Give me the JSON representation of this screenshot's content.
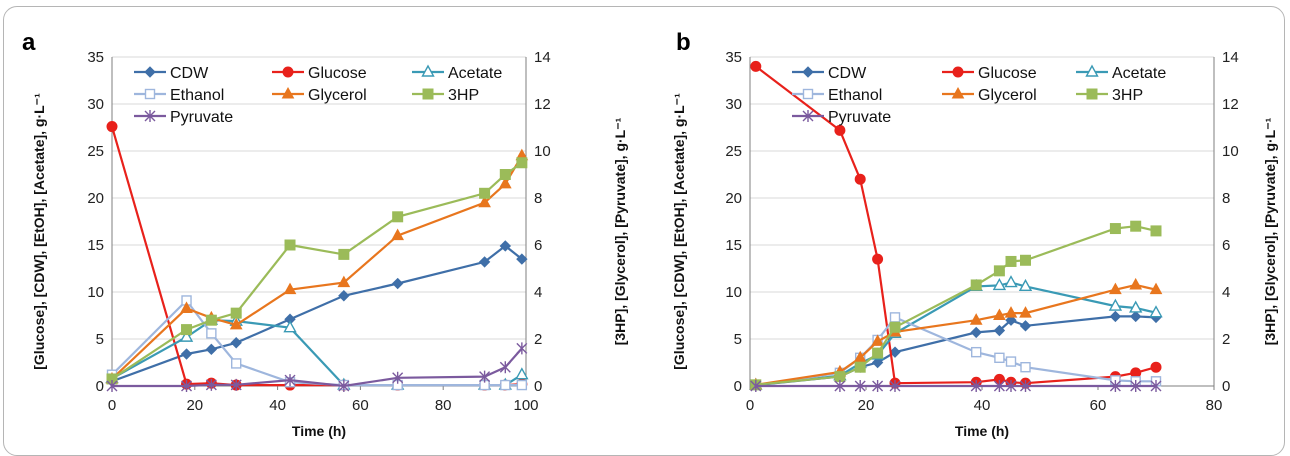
{
  "chart_data": [
    {
      "type": "line",
      "panel_label": "a",
      "xlabel": "Time (h)",
      "ylabel_left": "[Glucose], [CDW], [EtOH], [Acetate],  g·L⁻¹",
      "ylabel_right": "[3HP], [Glycerol], [Pyruvate], g·L⁻¹",
      "xlim": [
        0,
        100
      ],
      "xticks": [
        "0",
        "20",
        "40",
        "60",
        "80",
        "100"
      ],
      "ylim_left": [
        0,
        35
      ],
      "yticks_left": [
        "0",
        "5",
        "10",
        "15",
        "20",
        "25",
        "30",
        "35"
      ],
      "ylim_right": [
        0,
        14
      ],
      "yticks_right": [
        "0",
        "2",
        "4",
        "6",
        "8",
        "10",
        "12",
        "14"
      ],
      "grid": true,
      "legend_placement": "top-center",
      "series": [
        {
          "name": "CDW",
          "axis": "left",
          "color": "#3f6fa8",
          "marker": "diamond",
          "x": [
            0,
            18,
            24,
            30,
            43,
            56,
            69,
            90,
            95,
            99
          ],
          "y": [
            0.5,
            3.4,
            3.9,
            4.6,
            7.1,
            9.6,
            10.9,
            13.2,
            14.9,
            13.5
          ]
        },
        {
          "name": "Glucose",
          "axis": "left",
          "color": "#e8211b",
          "marker": "circle",
          "x": [
            0,
            18,
            24,
            30,
            43,
            56,
            69,
            90,
            95,
            99
          ],
          "y": [
            27.6,
            0.2,
            0.3,
            0.1,
            0.1,
            0.1,
            0.1,
            0.1,
            0.1,
            0.2
          ]
        },
        {
          "name": "Acetate",
          "axis": "left",
          "color": "#3a9ab5",
          "marker": "triangle-open",
          "x": [
            0,
            18,
            24,
            30,
            43,
            56,
            69,
            90,
            95,
            99
          ],
          "y": [
            0.8,
            5.2,
            7.0,
            6.9,
            6.2,
            0.1,
            0.1,
            0.1,
            0.1,
            1.2
          ]
        },
        {
          "name": "Ethanol",
          "axis": "left",
          "color": "#9eb6dd",
          "marker": "square-open",
          "x": [
            0,
            18,
            24,
            30,
            43,
            56,
            69,
            90,
            95,
            99
          ],
          "y": [
            1.2,
            9.1,
            5.6,
            2.4,
            0.4,
            0.1,
            0.1,
            0.1,
            0.1,
            0.1
          ]
        },
        {
          "name": "Glycerol",
          "axis": "right",
          "color": "#e8761e",
          "marker": "triangle",
          "x": [
            0,
            18,
            24,
            30,
            43,
            56,
            69,
            90,
            95,
            99
          ],
          "y": [
            0.3,
            3.3,
            2.9,
            2.6,
            4.1,
            4.4,
            6.4,
            7.8,
            8.6,
            9.8
          ]
        },
        {
          "name": "3HP",
          "axis": "right",
          "color": "#9bbb59",
          "marker": "square",
          "x": [
            0,
            18,
            24,
            30,
            43,
            56,
            69,
            90,
            95,
            99
          ],
          "y": [
            0.3,
            2.4,
            2.8,
            3.1,
            6.0,
            5.6,
            7.2,
            8.2,
            9.0,
            9.5
          ]
        },
        {
          "name": "Pyruvate",
          "axis": "right",
          "color": "#7b5a9e",
          "marker": "star",
          "x": [
            0,
            18,
            24,
            30,
            43,
            56,
            69,
            90,
            95,
            99
          ],
          "y": [
            0.0,
            0.0,
            0.05,
            0.05,
            0.25,
            0.0,
            0.35,
            0.4,
            0.8,
            1.6
          ]
        }
      ]
    },
    {
      "type": "line",
      "panel_label": "b",
      "xlabel": "Time (h)",
      "ylabel_left": "[Glucose], [CDW], [EtOH], [Acetate], g·L⁻¹",
      "ylabel_right": "[3HP], [Glycerol], [Pyruvate], g·L⁻¹",
      "xlim": [
        0,
        80
      ],
      "xticks": [
        "0",
        "20",
        "40",
        "60",
        "80"
      ],
      "ylim_left": [
        0,
        35
      ],
      "yticks_left": [
        "0",
        "5",
        "10",
        "15",
        "20",
        "25",
        "30",
        "35"
      ],
      "ylim_right": [
        0,
        14
      ],
      "yticks_right": [
        "0",
        "2",
        "4",
        "6",
        "8",
        "10",
        "12",
        "14"
      ],
      "grid": true,
      "legend_placement": "top-right",
      "series": [
        {
          "name": "CDW",
          "axis": "left",
          "color": "#3f6fa8",
          "marker": "diamond",
          "x": [
            1,
            15.5,
            19,
            22,
            25,
            39,
            43,
            45,
            47.5,
            63,
            66.5,
            70
          ],
          "y": [
            0.1,
            1.0,
            2.0,
            2.5,
            3.6,
            5.7,
            5.9,
            7.0,
            6.4,
            7.4,
            7.4,
            7.3
          ]
        },
        {
          "name": "Glucose",
          "axis": "left",
          "color": "#e8211b",
          "marker": "circle",
          "x": [
            1,
            15.5,
            19,
            22,
            25,
            39,
            43,
            45,
            47.5,
            63,
            66.5,
            70
          ],
          "y": [
            34.0,
            27.2,
            22.0,
            13.5,
            0.3,
            0.4,
            0.7,
            0.4,
            0.3,
            1.0,
            1.4,
            2.0
          ]
        },
        {
          "name": "Acetate",
          "axis": "left",
          "color": "#3a9ab5",
          "marker": "triangle-open",
          "x": [
            1,
            15.5,
            19,
            22,
            25,
            39,
            43,
            45,
            47.5,
            63,
            66.5,
            70
          ],
          "y": [
            0.1,
            1.1,
            2.4,
            3.3,
            5.6,
            10.6,
            10.7,
            11.0,
            10.6,
            8.5,
            8.3,
            7.8
          ]
        },
        {
          "name": "Ethanol",
          "axis": "left",
          "color": "#9eb6dd",
          "marker": "square-open",
          "x": [
            1,
            15.5,
            19,
            22,
            25,
            39,
            43,
            45,
            47.5,
            63,
            66.5,
            70
          ],
          "y": [
            0.1,
            1.4,
            3.0,
            4.9,
            7.3,
            3.6,
            3.0,
            2.6,
            2.0,
            0.6,
            0.5,
            0.5
          ]
        },
        {
          "name": "Glycerol",
          "axis": "right",
          "color": "#e8761e",
          "marker": "triangle",
          "x": [
            1,
            15.5,
            19,
            22,
            25,
            39,
            43,
            45,
            47.5,
            63,
            66.5,
            70
          ],
          "y": [
            0.05,
            0.6,
            1.2,
            1.9,
            2.3,
            2.8,
            3.0,
            3.1,
            3.1,
            4.1,
            4.3,
            4.1
          ]
        },
        {
          "name": "3HP",
          "axis": "right",
          "color": "#9bbb59",
          "marker": "square",
          "x": [
            1,
            15.5,
            19,
            22,
            25,
            39,
            43,
            45,
            47.5,
            63,
            66.5,
            70
          ],
          "y": [
            0.05,
            0.4,
            0.8,
            1.4,
            2.5,
            4.3,
            4.9,
            5.3,
            5.35,
            6.7,
            6.8,
            6.6
          ]
        },
        {
          "name": "Pyruvate",
          "axis": "right",
          "color": "#7b5a9e",
          "marker": "star",
          "x": [
            1,
            15.5,
            19,
            22,
            25,
            39,
            43,
            45,
            47.5,
            63,
            66.5,
            70
          ],
          "y": [
            0.0,
            0.0,
            0.0,
            0.0,
            0.0,
            0.0,
            0.0,
            0.0,
            0.0,
            0.0,
            0.0,
            0.0
          ]
        }
      ]
    }
  ]
}
